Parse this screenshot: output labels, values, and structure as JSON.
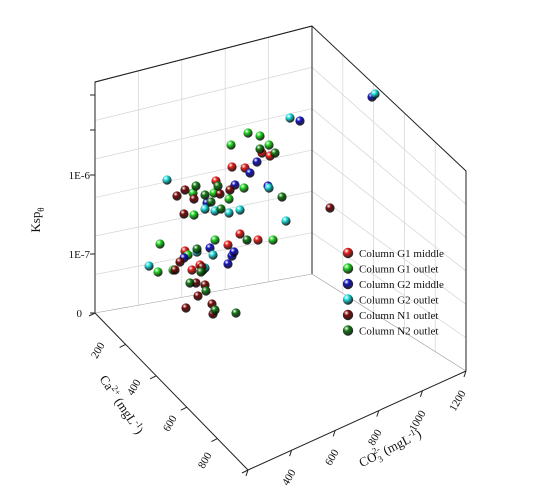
{
  "chart_data": {
    "type": "scatter3d",
    "title": "",
    "axes": {
      "z": {
        "label_main": "Ksp",
        "label_sub": "θ",
        "ticks": [
          "0",
          "1E-7",
          "1E-6"
        ]
      },
      "y": {
        "label_prefix": "Ca",
        "label_sup": "2+",
        "label_unit": "(mgL",
        "label_unit_sup": "-1",
        "label_end": ")",
        "ticks": [
          "200",
          "400",
          "600",
          "800"
        ]
      },
      "x": {
        "label_prefix": "CO",
        "label_sub": "3",
        "label_sup": "2-",
        "label_unit": "(mgL",
        "label_unit_sup": "-1",
        "label_end": ")",
        "ticks": [
          "400",
          "600",
          "800",
          "1000",
          "1200"
        ]
      }
    },
    "legend_position": "right",
    "series": [
      {
        "name": "Column G1 middle",
        "color": "#e8201c",
        "points": [
          [
            185,
            251
          ],
          [
            228,
            245
          ],
          [
            240,
            234
          ],
          [
            258,
            240
          ],
          [
            232,
            167
          ],
          [
            245,
            168
          ],
          [
            262,
            153
          ],
          [
            270,
            156
          ],
          [
            216,
            181
          ],
          [
            192,
            270
          ],
          [
            200,
            265
          ]
        ]
      },
      {
        "name": "Column G1 outlet",
        "color": "#22d822",
        "points": [
          [
            160,
            244
          ],
          [
            158,
            272
          ],
          [
            173,
            270
          ],
          [
            188,
            255
          ],
          [
            215,
            240
          ],
          [
            248,
            133
          ],
          [
            260,
            136
          ],
          [
            269,
            145
          ],
          [
            231,
            145
          ],
          [
            244,
            188
          ],
          [
            229,
            199
          ],
          [
            214,
            193
          ],
          [
            193,
            193
          ],
          [
            194,
            215
          ],
          [
            273,
            240
          ],
          [
            203,
            270
          ]
        ]
      },
      {
        "name": "Column G2 middle",
        "color": "#1515c0",
        "points": [
          [
            184,
            258
          ],
          [
            210,
            248
          ],
          [
            232,
            256
          ],
          [
            228,
            264
          ],
          [
            300,
            121
          ],
          [
            372,
            97
          ],
          [
            268,
            186
          ],
          [
            257,
            162
          ],
          [
            250,
            173
          ],
          [
            235,
            185
          ],
          [
            207,
            203
          ],
          [
            234,
            252
          ]
        ]
      },
      {
        "name": "Column G2 outlet",
        "color": "#22e0e0",
        "points": [
          [
            167,
            180
          ],
          [
            149,
            266
          ],
          [
            290,
            118
          ],
          [
            375,
            94
          ],
          [
            286,
            221
          ],
          [
            269,
            188
          ],
          [
            240,
            210
          ],
          [
            229,
            213
          ],
          [
            215,
            211
          ],
          [
            205,
            209
          ],
          [
            213,
            255
          ],
          [
            197,
            252
          ],
          [
            205,
            268
          ]
        ]
      },
      {
        "name": "Column N1 outlet",
        "color": "#7a0c0c",
        "points": [
          [
            177,
            196
          ],
          [
            185,
            190
          ],
          [
            184,
            214
          ],
          [
            194,
            199
          ],
          [
            230,
            190
          ],
          [
            220,
            194
          ],
          [
            330,
            208
          ],
          [
            175,
            270
          ],
          [
            202,
            267
          ],
          [
            205,
            285
          ],
          [
            198,
            296
          ],
          [
            212,
            304
          ],
          [
            213,
            314
          ],
          [
            186,
            308
          ],
          [
            180,
            262
          ],
          [
            196,
            283
          ]
        ]
      },
      {
        "name": "Column N2 outlet",
        "color": "#157a15",
        "points": [
          [
            260,
            149
          ],
          [
            275,
            153
          ],
          [
            196,
            186
          ],
          [
            205,
            195
          ],
          [
            218,
            186
          ],
          [
            211,
            202
          ],
          [
            221,
            209
          ],
          [
            247,
            240
          ],
          [
            282,
            197
          ],
          [
            197,
            249
          ],
          [
            215,
            310
          ],
          [
            236,
            313
          ],
          [
            206,
            291
          ],
          [
            190,
            283
          ],
          [
            201,
            272
          ]
        ]
      }
    ]
  }
}
